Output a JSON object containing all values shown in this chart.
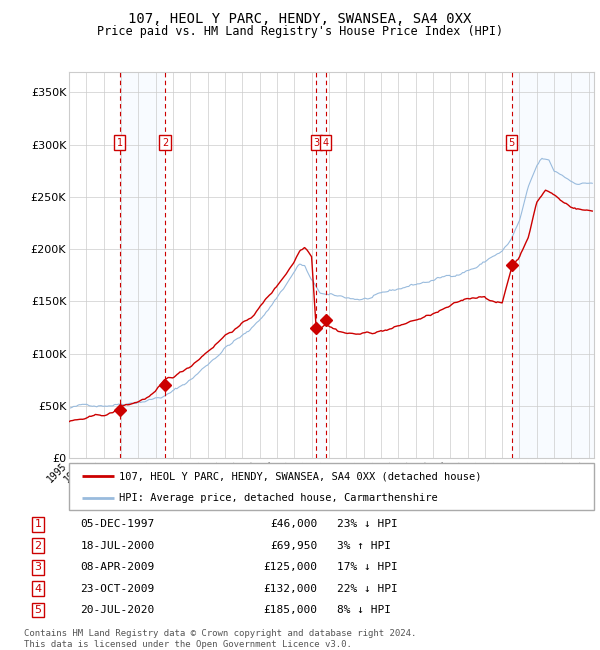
{
  "title": "107, HEOL Y PARC, HENDY, SWANSEA, SA4 0XX",
  "subtitle": "Price paid vs. HM Land Registry's House Price Index (HPI)",
  "xlim": [
    1995.0,
    2025.3
  ],
  "ylim": [
    0,
    370000
  ],
  "yticks": [
    0,
    50000,
    100000,
    150000,
    200000,
    250000,
    300000,
    350000
  ],
  "ytick_labels": [
    "£0",
    "£50K",
    "£100K",
    "£150K",
    "£200K",
    "£250K",
    "£300K",
    "£350K"
  ],
  "sale_points": [
    {
      "num": 1,
      "date": "05-DEC-1997",
      "price": 46000,
      "year": 1997.92,
      "pct": "23%",
      "dir": "↓"
    },
    {
      "num": 2,
      "date": "18-JUL-2000",
      "price": 69950,
      "year": 2000.54,
      "pct": "3%",
      "dir": "↑"
    },
    {
      "num": 3,
      "date": "08-APR-2009",
      "price": 125000,
      "year": 2009.27,
      "pct": "17%",
      "dir": "↓"
    },
    {
      "num": 4,
      "date": "23-OCT-2009",
      "price": 132000,
      "year": 2009.81,
      "pct": "22%",
      "dir": "↓"
    },
    {
      "num": 5,
      "date": "20-JUL-2020",
      "price": 185000,
      "year": 2020.55,
      "pct": "8%",
      "dir": "↓"
    }
  ],
  "vline_pairs": [
    [
      1997.92,
      2000.54
    ],
    [
      2009.27,
      2009.81
    ],
    [
      2020.55,
      2025.3
    ]
  ],
  "legend_line1": "107, HEOL Y PARC, HENDY, SWANSEA, SA4 0XX (detached house)",
  "legend_line2": "HPI: Average price, detached house, Carmarthenshire",
  "footer": "Contains HM Land Registry data © Crown copyright and database right 2024.\nThis data is licensed under the Open Government Licence v3.0.",
  "property_color": "#cc0000",
  "hpi_color": "#99bbdd",
  "background_color": "#ffffff",
  "shade_color": "#ddeeff",
  "grid_color": "#cccccc",
  "vline_color": "#cc0000",
  "label_box_color": "#cc0000",
  "hpi_anchors_x": [
    1995.0,
    1995.5,
    1996.0,
    1996.5,
    1997.0,
    1997.5,
    1998.0,
    1998.5,
    1999.0,
    1999.5,
    2000.0,
    2000.5,
    2001.0,
    2001.5,
    2002.0,
    2002.5,
    2003.0,
    2003.5,
    2004.0,
    2004.5,
    2005.0,
    2005.5,
    2006.0,
    2006.5,
    2007.0,
    2007.5,
    2008.0,
    2008.3,
    2008.6,
    2009.0,
    2009.5,
    2010.0,
    2010.5,
    2011.0,
    2011.5,
    2012.0,
    2012.5,
    2013.0,
    2013.5,
    2014.0,
    2014.5,
    2015.0,
    2015.5,
    2016.0,
    2016.5,
    2017.0,
    2017.5,
    2018.0,
    2018.5,
    2019.0,
    2019.5,
    2020.0,
    2020.5,
    2021.0,
    2021.5,
    2022.0,
    2022.3,
    2022.7,
    2023.0,
    2023.5,
    2024.0,
    2024.5,
    2025.2
  ],
  "hpi_anchors_y": [
    48000,
    49000,
    50000,
    51000,
    52000,
    53500,
    55000,
    57000,
    59000,
    61000,
    63000,
    65000,
    69000,
    74000,
    80000,
    87000,
    95000,
    103000,
    112000,
    118000,
    123000,
    128000,
    138000,
    148000,
    160000,
    172000,
    185000,
    192000,
    190000,
    175000,
    163000,
    160000,
    158000,
    157000,
    156000,
    156000,
    157000,
    158000,
    160000,
    162000,
    165000,
    167000,
    169000,
    171000,
    173000,
    175000,
    178000,
    182000,
    185000,
    190000,
    196000,
    200000,
    210000,
    228000,
    258000,
    278000,
    285000,
    282000,
    272000,
    268000,
    263000,
    262000,
    263000
  ],
  "prop_anchors_x": [
    1995.0,
    1995.5,
    1996.0,
    1996.5,
    1997.0,
    1997.5,
    1997.92,
    1998.0,
    1998.5,
    1999.0,
    1999.5,
    2000.0,
    2000.54,
    2001.0,
    2001.5,
    2002.0,
    2002.5,
    2003.0,
    2003.5,
    2004.0,
    2004.5,
    2005.0,
    2005.5,
    2006.0,
    2006.5,
    2007.0,
    2007.5,
    2008.0,
    2008.3,
    2008.6,
    2009.0,
    2009.27,
    2009.5,
    2009.81,
    2010.0,
    2010.5,
    2011.0,
    2011.5,
    2012.0,
    2012.5,
    2013.0,
    2013.5,
    2014.0,
    2014.5,
    2015.0,
    2015.5,
    2016.0,
    2016.5,
    2017.0,
    2017.5,
    2018.0,
    2018.5,
    2019.0,
    2019.5,
    2020.0,
    2020.55,
    2021.0,
    2021.5,
    2022.0,
    2022.5,
    2023.0,
    2023.5,
    2024.0,
    2024.5,
    2025.2
  ],
  "prop_anchors_y": [
    35000,
    36000,
    37000,
    38000,
    39000,
    41000,
    46000,
    47000,
    49000,
    52000,
    56000,
    61000,
    69950,
    73000,
    78000,
    84000,
    92000,
    100000,
    108000,
    116000,
    122000,
    127000,
    133000,
    143000,
    153000,
    163000,
    175000,
    188000,
    198000,
    202000,
    195000,
    125000,
    127000,
    132000,
    130000,
    126000,
    124000,
    123000,
    123000,
    124000,
    126000,
    128000,
    130000,
    133000,
    136000,
    138000,
    141000,
    144000,
    147000,
    150000,
    153000,
    155000,
    157000,
    152000,
    150000,
    185000,
    195000,
    215000,
    248000,
    260000,
    255000,
    248000,
    244000,
    242000,
    240000
  ]
}
